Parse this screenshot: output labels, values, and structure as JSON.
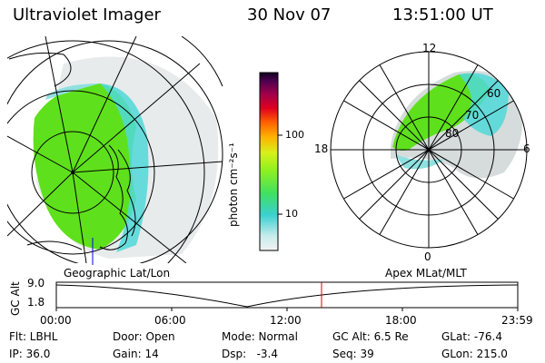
{
  "header": {
    "instrument": "Ultraviolet Imager",
    "date": "30 Nov 07",
    "time": "13:51:00 UT"
  },
  "left_panel": {
    "label": "Geographic Lat/Lon"
  },
  "right_panel": {
    "label": "Apex MLat/MLT",
    "mlt_labels": [
      "12",
      "18",
      "6",
      "0"
    ],
    "lat_labels": [
      "60",
      "70",
      "80"
    ]
  },
  "colorbar": {
    "label": "photon cm⁻²s⁻¹",
    "ticks": [
      {
        "label": "100",
        "value": 100
      },
      {
        "label": "10",
        "value": 10
      }
    ],
    "range": [
      3,
      600
    ],
    "scale": "log"
  },
  "timeline": {
    "ylabel": "GC Alt",
    "yticks": [
      "9.0",
      "1.8"
    ],
    "ylim": [
      1.8,
      9.0
    ],
    "xticks": [
      "00:00",
      "06:00",
      "12:00",
      "18:00",
      "23:59"
    ],
    "marker_time": "13:51"
  },
  "info": {
    "filter": "Flt: LBHL",
    "ip": "IP: 36.0",
    "door": "Door: Open",
    "gain": "Gain: 14",
    "mode": "Mode: Normal",
    "dsp": "Dsp:   -3.4",
    "gc_alt": "GC Alt: 6.5 Re",
    "seq": "Seq: 39",
    "glat": "GLat: -76.4",
    "glon": "GLon: 215.0"
  },
  "colors": {
    "aurora_green": "#5fe01c",
    "aurora_cyan": "#40d8d8",
    "background_speckle": "#d6dcdc",
    "marker": "#e00000"
  }
}
